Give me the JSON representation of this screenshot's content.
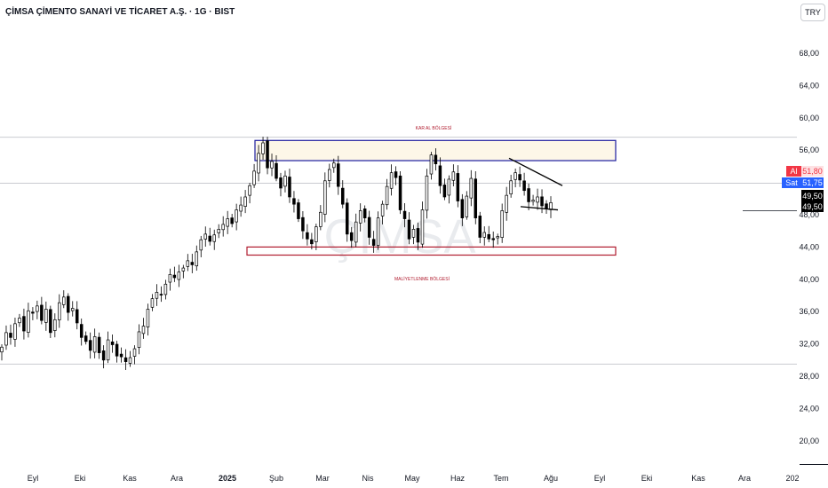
{
  "header": {
    "symbol_title": "ÇİMSA ÇİMENTO SANAYİ VE TİCARET A.Ş. · 1G · BIST",
    "currency_button": "TRY"
  },
  "watermark": "ÇİMSA",
  "price_tags": {
    "ask_label": "Al",
    "ask_value": "51,80",
    "bid_label": "Sat",
    "bid_value": "51,75",
    "last_value": "49,50",
    "last_value2": "49,50",
    "colors": {
      "ask": "#f23645",
      "bid": "#2962ff",
      "last": "#000000"
    }
  },
  "zones": {
    "upper_label": "KAR AL BÖLGESİ",
    "lower_label": "MALİYETLENME BÖLGESİ",
    "upper_range": [
      54.7,
      57.2
    ],
    "lower_range": [
      43.0,
      44.0
    ],
    "upper_color": "#1c1c9e",
    "lower_color": "#b01b2e"
  },
  "chart_data": {
    "type": "candlestick",
    "y_axis": {
      "min": 18,
      "max": 71,
      "ticks": [
        "20,00",
        "24,00",
        "28,00",
        "32,00",
        "36,00",
        "40,00",
        "44,00",
        "48,00",
        "52,00",
        "56,00",
        "60,00",
        "64,00",
        "68,00"
      ]
    },
    "x_axis": {
      "ticks": [
        "Eyl",
        "Eki",
        "Kas",
        "Ara",
        "2025",
        "Şub",
        "Mar",
        "Nis",
        "May",
        "Haz",
        "Tem",
        "Ağu",
        "Eyl",
        "Eki",
        "Kas",
        "Ara",
        "202"
      ]
    },
    "horizontal_lines": [
      57.6,
      51.9,
      29.5
    ],
    "pattern": {
      "upper_line": [
        [
          0,
          55.0
        ],
        [
          1,
          51.6
        ]
      ],
      "lower_line": [
        [
          0,
          49.0
        ],
        [
          1,
          48.6
        ]
      ]
    },
    "series": [
      {
        "name": "",
        "close": [
          31.6,
          33.4,
          32.8,
          34.5,
          35.2,
          33.6,
          36.1,
          35.8,
          36.7,
          34.9,
          36.3,
          33.4,
          35.0,
          37.1,
          37.8,
          35.9,
          36.4,
          34.6,
          32.8,
          32.3,
          31.2,
          32.9,
          30.9,
          30.0,
          32.5,
          31.9,
          30.5,
          30.4,
          29.8,
          30.3,
          31.4,
          33.5,
          34.2,
          36.3,
          37.6,
          38.4,
          38.1,
          39.4,
          40.6,
          40.2,
          40.9,
          41.4,
          42.3,
          41.8,
          43.4,
          44.9,
          45.6,
          44.7,
          45.5,
          46.2,
          46.8,
          47.5,
          46.9,
          48.6,
          49.2,
          50.2,
          51.6,
          53.4,
          55.6,
          56.9,
          53.8,
          54.6,
          52.5,
          51.3,
          52.8,
          50.2,
          49.3,
          47.5,
          46.0,
          45.0,
          44.4,
          46.5,
          48.3,
          52.2,
          53.6,
          54.4,
          51.5,
          49.3,
          45.6,
          44.8,
          47.1,
          48.5,
          47.6,
          45.2,
          44.2,
          47.6,
          49.3,
          51.5,
          53.2,
          52.6,
          48.6,
          47.5,
          45.0,
          46.2,
          44.6,
          48.6,
          52.8,
          55.4,
          54.3,
          51.6,
          50.2,
          52.4,
          53.3,
          49.7,
          47.6,
          50.3,
          52.5,
          47.6,
          45.2,
          45.8,
          45.0,
          44.9,
          45.3,
          48.5,
          50.4,
          52.2,
          53.2,
          52.3,
          51.0,
          49.6,
          49.8,
          50.2,
          49.1,
          48.7,
          49.5
        ]
      }
    ]
  }
}
